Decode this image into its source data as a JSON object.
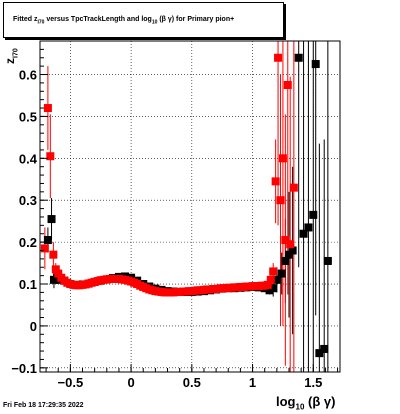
{
  "window": {
    "title_prefix": "Fitted  z",
    "title_sub": "I70",
    "title_mid": " versus TpcTrackLength and log",
    "title_sub2": "10",
    "title_suffix": " (β  γ) for Primary pion+",
    "timestamp": "Fri Feb 18 17:29:35 2022"
  },
  "colors": {
    "series_black": "#000000",
    "series_red": "#ff0000",
    "grid": "#000000"
  },
  "chart_data": {
    "type": "scatter",
    "xlabel": "log",
    "xlabel_sub": "10",
    "xlabel_suffix": " (β γ)",
    "ylabel": "z",
    "ylabel_sub": "I70",
    "xlim": [
      -0.75,
      1.72
    ],
    "ylim": [
      -0.11,
      0.68
    ],
    "xticks": [
      -0.5,
      0,
      0.5,
      1,
      1.5
    ],
    "xtick_labels": [
      "−0.5",
      "0",
      "0.5",
      "1",
      "1.5"
    ],
    "yticks": [
      -0.1,
      0,
      0.1,
      0.2,
      0.3,
      0.4,
      0.5,
      0.6
    ],
    "ytick_labels": [
      "−0.1",
      "0",
      "0.1",
      "0.2",
      "0.3",
      "0.4",
      "0.5",
      "0.6"
    ],
    "grid": true,
    "series": [
      {
        "color": "black",
        "x": [
          -0.685,
          -0.655,
          -0.635,
          -0.61,
          -0.58,
          -0.55,
          -0.5,
          -0.45,
          -0.4,
          -0.35,
          -0.3,
          -0.25,
          -0.2,
          -0.15,
          -0.1,
          -0.05,
          0.0,
          0.05,
          0.1,
          0.15,
          0.2,
          0.25,
          0.3,
          0.35,
          0.4,
          0.45,
          0.5,
          0.55,
          0.6,
          0.65,
          0.7,
          0.75,
          0.8,
          0.85,
          0.9,
          0.95,
          1.0,
          1.05,
          1.1,
          1.14,
          1.17,
          1.2,
          1.24,
          1.27,
          1.3,
          1.33,
          1.38,
          1.42,
          1.46,
          1.5,
          1.52,
          1.55,
          1.59,
          1.62
        ],
        "y": [
          0.205,
          0.255,
          0.11,
          0.115,
          0.11,
          0.108,
          0.1,
          0.098,
          0.099,
          0.101,
          0.105,
          0.108,
          0.111,
          0.114,
          0.117,
          0.118,
          0.115,
          0.108,
          0.1,
          0.094,
          0.089,
          0.086,
          0.083,
          0.082,
          0.081,
          0.081,
          0.081,
          0.082,
          0.083,
          0.085,
          0.087,
          0.089,
          0.09,
          0.09,
          0.091,
          0.092,
          0.093,
          0.092,
          0.09,
          0.085,
          0.09,
          0.11,
          0.125,
          0.155,
          0.17,
          0.18,
          0.64,
          0.22,
          0.235,
          0.265,
          0.625,
          -0.065,
          -0.055,
          0.155
        ],
        "err": [
          0.03,
          0.05,
          0.02,
          0.01,
          0.01,
          0.005,
          0.004,
          0.003,
          0.003,
          0.003,
          0.003,
          0.003,
          0.003,
          0.003,
          0.003,
          0.003,
          0.003,
          0.003,
          0.003,
          0.003,
          0.003,
          0.003,
          0.003,
          0.003,
          0.003,
          0.003,
          0.003,
          0.003,
          0.003,
          0.003,
          0.003,
          0.003,
          0.003,
          0.003,
          0.003,
          0.003,
          0.003,
          0.004,
          0.005,
          0.01,
          0.02,
          0.03,
          0.05,
          0.1,
          0.15,
          0.2,
          0.5,
          0.5,
          0.5,
          0.6,
          0.6,
          0.5,
          0.5,
          0.6
        ]
      },
      {
        "color": "red",
        "x": [
          -0.71,
          -0.685,
          -0.665,
          -0.64,
          -0.62,
          -0.6,
          -0.575,
          -0.55,
          -0.525,
          -0.5,
          -0.475,
          -0.45,
          -0.425,
          -0.4,
          -0.375,
          -0.35,
          -0.325,
          -0.3,
          -0.275,
          -0.25,
          -0.225,
          -0.2,
          -0.175,
          -0.15,
          -0.125,
          -0.1,
          -0.075,
          -0.05,
          -0.025,
          0.0,
          0.025,
          0.05,
          0.075,
          0.1,
          0.125,
          0.15,
          0.175,
          0.2,
          0.225,
          0.25,
          0.275,
          0.3,
          0.325,
          0.35,
          0.375,
          0.4,
          0.425,
          0.45,
          0.475,
          0.5,
          0.525,
          0.55,
          0.575,
          0.6,
          0.625,
          0.65,
          0.675,
          0.7,
          0.725,
          0.75,
          0.775,
          0.8,
          0.825,
          0.85,
          0.875,
          0.9,
          0.925,
          0.95,
          0.975,
          1.0,
          1.025,
          1.05,
          1.075,
          1.1,
          1.125,
          1.15,
          1.17,
          1.19,
          1.21,
          1.23,
          1.25,
          1.27,
          1.29,
          1.31,
          1.34
        ],
        "y": [
          0.185,
          0.52,
          0.405,
          0.17,
          0.135,
          0.125,
          0.115,
          0.108,
          0.103,
          0.1,
          0.098,
          0.097,
          0.097,
          0.098,
          0.099,
          0.101,
          0.103,
          0.105,
          0.107,
          0.109,
          0.11,
          0.111,
          0.112,
          0.112,
          0.112,
          0.112,
          0.111,
          0.11,
          0.108,
          0.106,
          0.103,
          0.1,
          0.096,
          0.093,
          0.09,
          0.087,
          0.085,
          0.083,
          0.082,
          0.081,
          0.08,
          0.08,
          0.08,
          0.08,
          0.081,
          0.081,
          0.082,
          0.082,
          0.083,
          0.083,
          0.084,
          0.085,
          0.085,
          0.086,
          0.087,
          0.087,
          0.088,
          0.088,
          0.089,
          0.09,
          0.09,
          0.091,
          0.091,
          0.092,
          0.092,
          0.093,
          0.093,
          0.094,
          0.094,
          0.095,
          0.095,
          0.095,
          0.096,
          0.096,
          0.098,
          0.11,
          0.13,
          0.345,
          0.64,
          0.3,
          0.4,
          0.205,
          0.575,
          0.195,
          0.33
        ],
        "err": [
          0.05,
          0.1,
          0.1,
          0.03,
          0.015,
          0.008,
          0.005,
          0.004,
          0.003,
          0.003,
          0.003,
          0.003,
          0.003,
          0.003,
          0.003,
          0.003,
          0.003,
          0.003,
          0.003,
          0.003,
          0.003,
          0.003,
          0.003,
          0.003,
          0.003,
          0.003,
          0.003,
          0.003,
          0.003,
          0.003,
          0.003,
          0.003,
          0.003,
          0.003,
          0.003,
          0.003,
          0.003,
          0.003,
          0.003,
          0.003,
          0.003,
          0.003,
          0.003,
          0.003,
          0.003,
          0.003,
          0.003,
          0.003,
          0.003,
          0.003,
          0.003,
          0.003,
          0.003,
          0.003,
          0.003,
          0.003,
          0.003,
          0.003,
          0.003,
          0.003,
          0.003,
          0.003,
          0.003,
          0.003,
          0.003,
          0.003,
          0.003,
          0.003,
          0.003,
          0.003,
          0.003,
          0.003,
          0.003,
          0.004,
          0.006,
          0.01,
          0.02,
          0.1,
          0.4,
          0.3,
          0.4,
          0.3,
          0.5,
          0.4,
          0.5
        ]
      }
    ]
  }
}
